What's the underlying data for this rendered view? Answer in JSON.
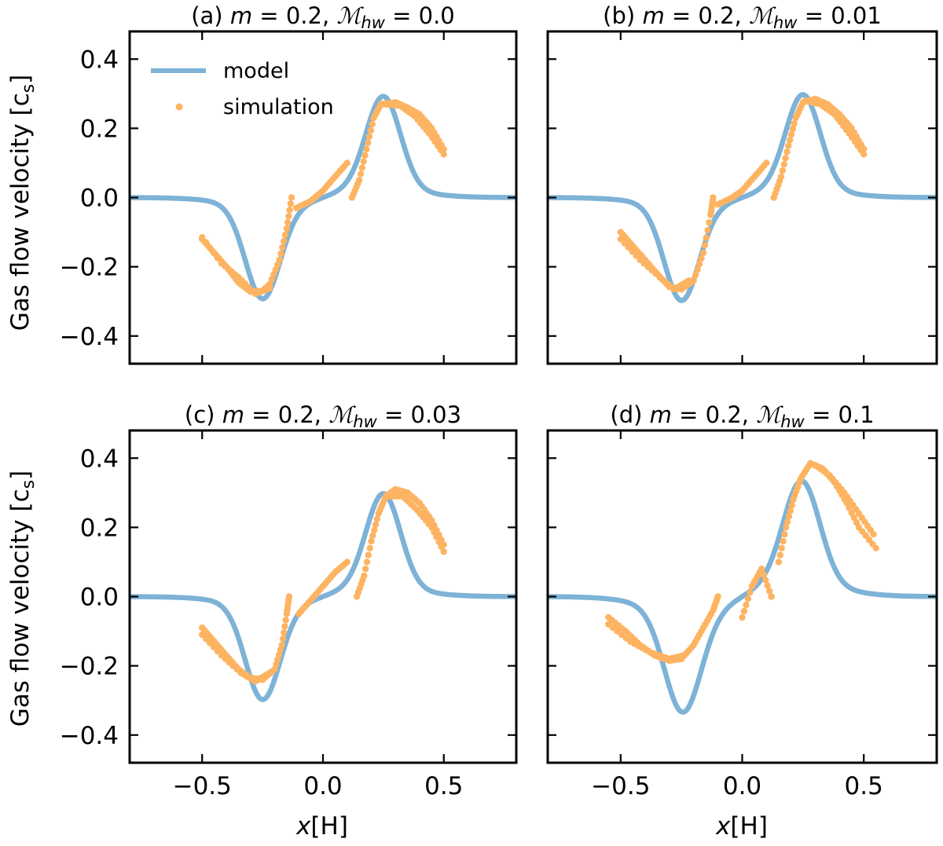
{
  "figure": {
    "ylabel": "Gas flow velocity [c",
    "ylabel_sub": "s",
    "ylabel_end": "]",
    "xlabel": "x",
    "xlabel_unit": "[H]"
  },
  "legend": {
    "model": "model",
    "simulation": "simulation"
  },
  "colors": {
    "model": "#7eb2d7",
    "simulation": "#fdb462",
    "axes": "#000000"
  },
  "chart_data": [
    {
      "type": "scatter",
      "panel": "a",
      "title": "(a) m = 0.2,  ℳhw = 0.0",
      "title_parts": {
        "prefix": "(a) ",
        "m": "m",
        "m_val": " = 0.2,  ",
        "mach": "ℳ",
        "mach_sub": "hw",
        "mach_val": " = 0.0"
      },
      "xlim": [
        -0.8,
        0.8
      ],
      "ylim": [
        -0.48,
        0.48
      ],
      "xticks": [
        -0.5,
        0.0,
        0.5
      ],
      "yticks": [
        -0.4,
        -0.2,
        0.0,
        0.2,
        0.4
      ],
      "xtick_labels": [
        "−0.5",
        "0.0",
        "0.5"
      ],
      "ytick_labels": [
        "−0.4",
        "−0.2",
        "0.0",
        "0.2",
        "0.4"
      ],
      "show_xticklabels": false,
      "show_yticklabels": true,
      "model": {
        "amp": 0.265,
        "center": 0.25,
        "width": 0.1,
        "lin": 0.22
      },
      "simulation_segments": [
        [
          [
            -0.5,
            -0.12
          ],
          [
            -0.45,
            -0.16
          ],
          [
            -0.4,
            -0.2
          ],
          [
            -0.35,
            -0.245
          ],
          [
            -0.3,
            -0.272
          ],
          [
            -0.25,
            -0.27
          ],
          [
            -0.22,
            -0.25
          ],
          [
            -0.18,
            -0.18
          ],
          [
            -0.15,
            -0.09
          ],
          [
            -0.13,
            0.0
          ]
        ],
        [
          [
            -0.5,
            -0.115
          ],
          [
            -0.42,
            -0.19
          ],
          [
            -0.35,
            -0.23
          ],
          [
            -0.28,
            -0.278
          ],
          [
            -0.22,
            -0.262
          ]
        ],
        [
          [
            -0.11,
            -0.03
          ],
          [
            -0.05,
            -0.01
          ],
          [
            0.0,
            0.02
          ],
          [
            0.05,
            0.06
          ],
          [
            0.1,
            0.1
          ]
        ],
        [
          [
            0.12,
            0.0
          ],
          [
            0.15,
            0.05
          ],
          [
            0.18,
            0.14
          ],
          [
            0.21,
            0.23
          ],
          [
            0.24,
            0.27
          ],
          [
            0.3,
            0.275
          ],
          [
            0.35,
            0.26
          ],
          [
            0.4,
            0.24
          ],
          [
            0.45,
            0.2
          ],
          [
            0.5,
            0.14
          ]
        ],
        [
          [
            0.25,
            0.27
          ],
          [
            0.32,
            0.265
          ],
          [
            0.38,
            0.235
          ],
          [
            0.44,
            0.185
          ],
          [
            0.5,
            0.125
          ]
        ]
      ]
    },
    {
      "type": "scatter",
      "panel": "b",
      "title": "(b) m = 0.2,  ℳhw = 0.01",
      "title_parts": {
        "prefix": "(b) ",
        "m": "m",
        "m_val": " = 0.2,  ",
        "mach": "ℳ",
        "mach_sub": "hw",
        "mach_val": " = 0.01"
      },
      "xlim": [
        -0.8,
        0.8
      ],
      "ylim": [
        -0.48,
        0.48
      ],
      "xticks": [
        -0.5,
        0.0,
        0.5
      ],
      "yticks": [
        -0.4,
        -0.2,
        0.0,
        0.2,
        0.4
      ],
      "xtick_labels": [
        "−0.5",
        "0.0",
        "0.5"
      ],
      "ytick_labels": [
        "−0.4",
        "−0.2",
        "0.0",
        "0.2",
        "0.4"
      ],
      "show_xticklabels": false,
      "show_yticklabels": false,
      "model": {
        "amp": 0.27,
        "center": 0.25,
        "width": 0.1,
        "lin": 0.22
      },
      "simulation_segments": [
        [
          [
            -0.5,
            -0.1
          ],
          [
            -0.45,
            -0.14
          ],
          [
            -0.4,
            -0.18
          ],
          [
            -0.35,
            -0.22
          ],
          [
            -0.3,
            -0.258
          ],
          [
            -0.25,
            -0.265
          ],
          [
            -0.2,
            -0.24
          ],
          [
            -0.16,
            -0.16
          ],
          [
            -0.13,
            -0.05
          ],
          [
            -0.12,
            0.0
          ]
        ],
        [
          [
            -0.5,
            -0.12
          ],
          [
            -0.42,
            -0.18
          ],
          [
            -0.34,
            -0.23
          ],
          [
            -0.28,
            -0.265
          ],
          [
            -0.22,
            -0.24
          ]
        ],
        [
          [
            -0.1,
            -0.02
          ],
          [
            -0.04,
            0.0
          ],
          [
            0.0,
            0.02
          ],
          [
            0.05,
            0.06
          ],
          [
            0.1,
            0.1
          ]
        ],
        [
          [
            0.13,
            0.0
          ],
          [
            0.16,
            0.06
          ],
          [
            0.19,
            0.15
          ],
          [
            0.22,
            0.23
          ],
          [
            0.25,
            0.275
          ],
          [
            0.3,
            0.285
          ],
          [
            0.35,
            0.27
          ],
          [
            0.4,
            0.24
          ],
          [
            0.45,
            0.2
          ],
          [
            0.5,
            0.14
          ]
        ],
        [
          [
            0.26,
            0.28
          ],
          [
            0.32,
            0.27
          ],
          [
            0.38,
            0.24
          ],
          [
            0.44,
            0.185
          ],
          [
            0.5,
            0.125
          ]
        ]
      ]
    },
    {
      "type": "scatter",
      "panel": "c",
      "title": "(c) m = 0.2,  ℳhw = 0.03",
      "title_parts": {
        "prefix": "(c) ",
        "m": "m",
        "m_val": " = 0.2,  ",
        "mach": "ℳ",
        "mach_sub": "hw",
        "mach_val": " = 0.03"
      },
      "xlim": [
        -0.8,
        0.8
      ],
      "ylim": [
        -0.48,
        0.48
      ],
      "xticks": [
        -0.5,
        0.0,
        0.5
      ],
      "yticks": [
        -0.4,
        -0.2,
        0.0,
        0.2,
        0.4
      ],
      "xtick_labels": [
        "−0.5",
        "0.0",
        "0.5"
      ],
      "ytick_labels": [
        "−0.4",
        "−0.2",
        "0.0",
        "0.2",
        "0.4"
      ],
      "show_xticklabels": true,
      "show_yticklabels": true,
      "model": {
        "amp": 0.27,
        "center": 0.25,
        "width": 0.1,
        "lin": 0.22
      },
      "simulation_segments": [
        [
          [
            -0.5,
            -0.09
          ],
          [
            -0.45,
            -0.13
          ],
          [
            -0.4,
            -0.17
          ],
          [
            -0.35,
            -0.21
          ],
          [
            -0.3,
            -0.235
          ],
          [
            -0.25,
            -0.24
          ],
          [
            -0.2,
            -0.21
          ],
          [
            -0.17,
            -0.14
          ],
          [
            -0.15,
            -0.05
          ],
          [
            -0.14,
            0.0
          ]
        ],
        [
          [
            -0.5,
            -0.11
          ],
          [
            -0.42,
            -0.17
          ],
          [
            -0.34,
            -0.22
          ],
          [
            -0.28,
            -0.245
          ],
          [
            -0.22,
            -0.22
          ]
        ],
        [
          [
            -0.1,
            -0.05
          ],
          [
            -0.05,
            -0.01
          ],
          [
            0.0,
            0.03
          ],
          [
            0.05,
            0.07
          ],
          [
            0.1,
            0.1
          ]
        ],
        [
          [
            0.14,
            0.0
          ],
          [
            0.17,
            0.06
          ],
          [
            0.2,
            0.16
          ],
          [
            0.23,
            0.24
          ],
          [
            0.26,
            0.29
          ],
          [
            0.3,
            0.31
          ],
          [
            0.35,
            0.3
          ],
          [
            0.4,
            0.27
          ],
          [
            0.45,
            0.22
          ],
          [
            0.5,
            0.15
          ]
        ],
        [
          [
            0.27,
            0.29
          ],
          [
            0.33,
            0.29
          ],
          [
            0.39,
            0.25
          ],
          [
            0.45,
            0.2
          ],
          [
            0.5,
            0.13
          ]
        ]
      ]
    },
    {
      "type": "scatter",
      "panel": "d",
      "title": "(d) m = 0.2,  ℳhw = 0.1",
      "title_parts": {
        "prefix": "(d) ",
        "m": "m",
        "m_val": " = 0.2,  ",
        "mach": "ℳ",
        "mach_sub": "hw",
        "mach_val": " = 0.1"
      },
      "xlim": [
        -0.8,
        0.8
      ],
      "ylim": [
        -0.48,
        0.48
      ],
      "xticks": [
        -0.5,
        0.0,
        0.5
      ],
      "yticks": [
        -0.4,
        -0.2,
        0.0,
        0.2,
        0.4
      ],
      "xtick_labels": [
        "−0.5",
        "0.0",
        "0.5"
      ],
      "ytick_labels": [
        "−0.4",
        "−0.2",
        "0.0",
        "0.2",
        "0.4"
      ],
      "show_xticklabels": true,
      "show_yticklabels": false,
      "model": {
        "amp": 0.29,
        "center": 0.245,
        "width": 0.105,
        "lin": 0.35
      },
      "simulation_segments": [
        [
          [
            -0.55,
            -0.06
          ],
          [
            -0.48,
            -0.1
          ],
          [
            -0.42,
            -0.14
          ],
          [
            -0.36,
            -0.17
          ],
          [
            -0.3,
            -0.185
          ],
          [
            -0.25,
            -0.18
          ],
          [
            -0.2,
            -0.14
          ],
          [
            -0.16,
            -0.09
          ],
          [
            -0.12,
            -0.04
          ],
          [
            -0.1,
            0.0
          ]
        ],
        [
          [
            -0.55,
            -0.08
          ],
          [
            -0.46,
            -0.13
          ],
          [
            -0.38,
            -0.16
          ],
          [
            -0.3,
            -0.18
          ],
          [
            -0.24,
            -0.17
          ]
        ],
        [
          [
            0.0,
            -0.06
          ],
          [
            0.04,
            0.03
          ],
          [
            0.08,
            0.08
          ],
          [
            0.12,
            0.0
          ]
        ],
        [
          [
            0.15,
            0.1
          ],
          [
            0.18,
            0.2
          ],
          [
            0.21,
            0.28
          ],
          [
            0.24,
            0.34
          ],
          [
            0.28,
            0.385
          ],
          [
            0.33,
            0.37
          ],
          [
            0.38,
            0.33
          ],
          [
            0.43,
            0.27
          ],
          [
            0.48,
            0.2
          ],
          [
            0.55,
            0.14
          ]
        ],
        [
          [
            0.3,
            0.38
          ],
          [
            0.36,
            0.35
          ],
          [
            0.42,
            0.3
          ],
          [
            0.48,
            0.24
          ],
          [
            0.54,
            0.18
          ]
        ]
      ]
    }
  ]
}
